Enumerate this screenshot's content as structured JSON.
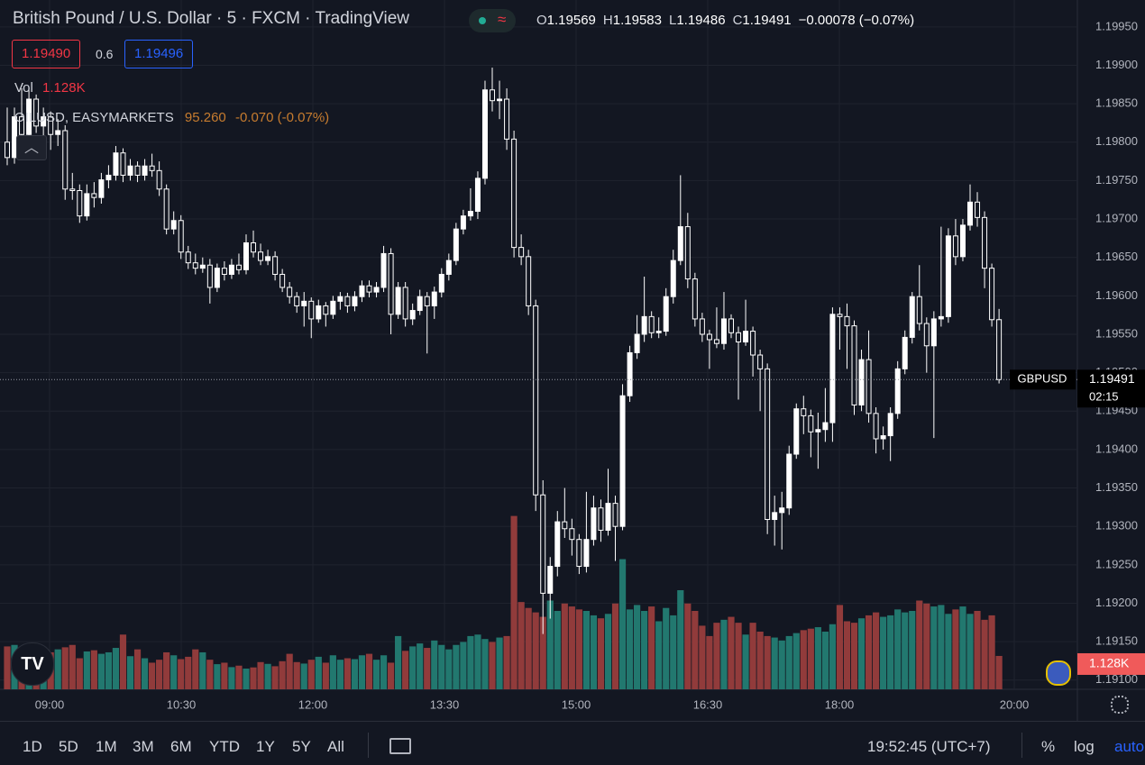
{
  "header": {
    "symbol": "British Pound / U.S. Dollar",
    "interval": "5",
    "exchange": "FXCM",
    "source": "TradingView",
    "ohlc_letters": [
      "O",
      "H",
      "L",
      "C"
    ],
    "change": "−0.00078 (−0.07%)",
    "bid": "1.19490",
    "spread": "0.6",
    "ask": "1.19496",
    "vol_label": "Vol",
    "indicator": "OILUSD, EASYMARKETS",
    "indicator_value": "95.260",
    "indicator_change": "-0.070 (-0.07%)"
  },
  "chart_data": {
    "type": "candlestick",
    "grid": true,
    "candle_color": "#ffffff",
    "up_color": "#22786f",
    "down_color": "#913b3b",
    "symbol_label": "GBPUSD",
    "countdown": "02:15",
    "volume_value_label": "1.128K",
    "ylim": [
      1.19088,
      1.19985
    ],
    "yticks": [
      {
        "value": 1.1995,
        "label": "1.19950"
      },
      {
        "value": 1.199,
        "label": "1.19900"
      },
      {
        "value": 1.1985,
        "label": "1.19850"
      },
      {
        "value": 1.198,
        "label": "1.19800"
      },
      {
        "value": 1.1975,
        "label": "1.19750"
      },
      {
        "value": 1.197,
        "label": "1.19700"
      },
      {
        "value": 1.1965,
        "label": "1.19650"
      },
      {
        "value": 1.196,
        "label": "1.19600"
      },
      {
        "value": 1.1955,
        "label": "1.19550"
      },
      {
        "value": 1.195,
        "label": "1.19500"
      },
      {
        "value": 1.1945,
        "label": "1.19450"
      },
      {
        "value": 1.194,
        "label": "1.19400"
      },
      {
        "value": 1.1935,
        "label": "1.19350"
      },
      {
        "value": 1.193,
        "label": "1.19300"
      },
      {
        "value": 1.1925,
        "label": "1.19250"
      },
      {
        "value": 1.192,
        "label": "1.19200"
      },
      {
        "value": 1.1915,
        "label": "1.19150"
      },
      {
        "value": 1.191,
        "label": "1.19100"
      }
    ],
    "y2lim": [
      0,
      23300
    ],
    "time_labels": [
      "09:00",
      "10:30",
      "12:00",
      "13:30",
      "15:00",
      "16:30",
      "18:00",
      "20:00"
    ],
    "candles": [
      [
        1.198,
        1.19845,
        1.1977,
        1.1978
      ],
      [
        1.1978,
        1.19845,
        1.19772,
        1.19833
      ],
      [
        1.19833,
        1.1987,
        1.198,
        1.1981
      ],
      [
        1.1981,
        1.19868,
        1.19802,
        1.19856
      ],
      [
        1.19856,
        1.19862,
        1.19812,
        1.19821
      ],
      [
        1.19821,
        1.19845,
        1.198,
        1.19833
      ],
      [
        1.19833,
        1.1984,
        1.1979,
        1.1981
      ],
      [
        1.1981,
        1.1983,
        1.19795,
        1.19815
      ],
      [
        1.19815,
        1.19822,
        1.19725,
        1.19739
      ],
      [
        1.19739,
        1.1976,
        1.19725,
        1.19737
      ],
      [
        1.19737,
        1.19745,
        1.19695,
        1.19704
      ],
      [
        1.19704,
        1.19745,
        1.19698,
        1.19733
      ],
      [
        1.19733,
        1.19748,
        1.19715,
        1.19728
      ],
      [
        1.19728,
        1.1976,
        1.1972,
        1.19751
      ],
      [
        1.19751,
        1.1977,
        1.1974,
        1.19757
      ],
      [
        1.19757,
        1.19795,
        1.1975,
        1.19786
      ],
      [
        1.19786,
        1.19792,
        1.19748,
        1.19757
      ],
      [
        1.19757,
        1.19778,
        1.1975,
        1.19769
      ],
      [
        1.19769,
        1.19775,
        1.19748,
        1.19757
      ],
      [
        1.19757,
        1.19778,
        1.1975,
        1.19769
      ],
      [
        1.19769,
        1.19785,
        1.19755,
        1.19763
      ],
      [
        1.19763,
        1.19775,
        1.1973,
        1.19739
      ],
      [
        1.19739,
        1.19745,
        1.1968,
        1.19687
      ],
      [
        1.19687,
        1.1971,
        1.1968,
        1.19698
      ],
      [
        1.19698,
        1.19705,
        1.19648,
        1.19657
      ],
      [
        1.19657,
        1.19665,
        1.19635,
        1.19643
      ],
      [
        1.19643,
        1.19655,
        1.19628,
        1.19636
      ],
      [
        1.19636,
        1.1965,
        1.1963,
        1.1964
      ],
      [
        1.1964,
        1.19648,
        1.1959,
        1.19611
      ],
      [
        1.19611,
        1.19642,
        1.19605,
        1.19636
      ],
      [
        1.19636,
        1.19645,
        1.1962,
        1.19628
      ],
      [
        1.19628,
        1.19648,
        1.19622,
        1.1964
      ],
      [
        1.1964,
        1.19655,
        1.19628,
        1.19634
      ],
      [
        1.19634,
        1.1968,
        1.19628,
        1.19669
      ],
      [
        1.19669,
        1.19685,
        1.1965,
        1.19657
      ],
      [
        1.19657,
        1.19668,
        1.1964,
        1.19646
      ],
      [
        1.19646,
        1.1966,
        1.1964,
        1.19651
      ],
      [
        1.19651,
        1.19658,
        1.1962,
        1.19628
      ],
      [
        1.19628,
        1.19635,
        1.19605,
        1.19611
      ],
      [
        1.19611,
        1.19618,
        1.1959,
        1.19599
      ],
      [
        1.19599,
        1.19605,
        1.19578,
        1.19587
      ],
      [
        1.19587,
        1.19605,
        1.1956,
        1.19593
      ],
      [
        1.19593,
        1.19598,
        1.19545,
        1.1957
      ],
      [
        1.1957,
        1.19595,
        1.19565,
        1.19587
      ],
      [
        1.19587,
        1.19592,
        1.1956,
        1.19576
      ],
      [
        1.19576,
        1.196,
        1.1957,
        1.19593
      ],
      [
        1.19593,
        1.19605,
        1.19582,
        1.19599
      ],
      [
        1.19599,
        1.19604,
        1.19578,
        1.19587
      ],
      [
        1.19587,
        1.19606,
        1.1958,
        1.19599
      ],
      [
        1.19599,
        1.1962,
        1.19592,
        1.19613
      ],
      [
        1.19613,
        1.1962,
        1.19598,
        1.19605
      ],
      [
        1.19605,
        1.19618,
        1.19598,
        1.19611
      ],
      [
        1.19611,
        1.19665,
        1.19605,
        1.19655
      ],
      [
        1.19655,
        1.19662,
        1.1955,
        1.19576
      ],
      [
        1.19576,
        1.19618,
        1.1957,
        1.19611
      ],
      [
        1.19611,
        1.19618,
        1.1956,
        1.1957
      ],
      [
        1.1957,
        1.1959,
        1.19562,
        1.19581
      ],
      [
        1.19581,
        1.19608,
        1.19575,
        1.19599
      ],
      [
        1.19599,
        1.19605,
        1.19525,
        1.19587
      ],
      [
        1.19587,
        1.19612,
        1.1957,
        1.19605
      ],
      [
        1.19605,
        1.19636,
        1.19598,
        1.19628
      ],
      [
        1.19628,
        1.19655,
        1.1962,
        1.19646
      ],
      [
        1.19646,
        1.19695,
        1.1964,
        1.19687
      ],
      [
        1.19687,
        1.19712,
        1.1968,
        1.19704
      ],
      [
        1.19704,
        1.1974,
        1.19698,
        1.1971
      ],
      [
        1.1971,
        1.19762,
        1.197,
        1.19753
      ],
      [
        1.19753,
        1.1988,
        1.19745,
        1.19868
      ],
      [
        1.19868,
        1.19897,
        1.1984,
        1.19854
      ],
      [
        1.19854,
        1.1988,
        1.1983,
        1.19856
      ],
      [
        1.19856,
        1.1987,
        1.1979,
        1.19804
      ],
      [
        1.19804,
        1.19815,
        1.1965,
        1.19663
      ],
      [
        1.19663,
        1.1968,
        1.1964,
        1.19651
      ],
      [
        1.19651,
        1.1966,
        1.19575,
        1.19587
      ],
      [
        1.19587,
        1.19595,
        1.1932,
        1.19341
      ],
      [
        1.19341,
        1.1936,
        1.1916,
        1.19213
      ],
      [
        1.19213,
        1.1926,
        1.1918,
        1.19248
      ],
      [
        1.19248,
        1.1932,
        1.19235,
        1.19306
      ],
      [
        1.19306,
        1.1935,
        1.19285,
        1.19297
      ],
      [
        1.19297,
        1.1931,
        1.19262,
        1.19283
      ],
      [
        1.19283,
        1.1929,
        1.19238,
        1.19248
      ],
      [
        1.19248,
        1.19345,
        1.1924,
        1.19283
      ],
      [
        1.19283,
        1.1934,
        1.19275,
        1.19324
      ],
      [
        1.19324,
        1.19335,
        1.1928,
        1.19295
      ],
      [
        1.19295,
        1.19375,
        1.19288,
        1.1933
      ],
      [
        1.1933,
        1.1934,
        1.19255,
        1.193
      ],
      [
        1.193,
        1.19485,
        1.19295,
        1.1947
      ],
      [
        1.1947,
        1.19535,
        1.19462,
        1.19526
      ],
      [
        1.19526,
        1.19575,
        1.19518,
        1.1955
      ],
      [
        1.1955,
        1.19625,
        1.1954,
        1.19573
      ],
      [
        1.19573,
        1.1958,
        1.19545,
        1.19552
      ],
      [
        1.19552,
        1.19572,
        1.19545,
        1.19554
      ],
      [
        1.19554,
        1.1961,
        1.19548,
        1.19599
      ],
      [
        1.19599,
        1.1966,
        1.1959,
        1.19646
      ],
      [
        1.19646,
        1.19757,
        1.1964,
        1.1969
      ],
      [
        1.1969,
        1.19708,
        1.1961,
        1.19622
      ],
      [
        1.19622,
        1.1963,
        1.1956,
        1.1957
      ],
      [
        1.1957,
        1.19578,
        1.1954,
        1.1955
      ],
      [
        1.1955,
        1.19556,
        1.19505,
        1.19543
      ],
      [
        1.19543,
        1.19585,
        1.19532,
        1.19538
      ],
      [
        1.19538,
        1.19605,
        1.1953,
        1.1957
      ],
      [
        1.1957,
        1.19576,
        1.19545,
        1.19552
      ],
      [
        1.19552,
        1.1956,
        1.19465,
        1.1954
      ],
      [
        1.1954,
        1.19595,
        1.19535,
        1.19554
      ],
      [
        1.19554,
        1.1956,
        1.19495,
        1.19523
      ],
      [
        1.19523,
        1.1953,
        1.1945,
        1.19505
      ],
      [
        1.19505,
        1.19512,
        1.1929,
        1.19309
      ],
      [
        1.19309,
        1.1934,
        1.19275,
        1.19318
      ],
      [
        1.19318,
        1.19345,
        1.1927,
        1.19324
      ],
      [
        1.19324,
        1.19405,
        1.19315,
        1.19394
      ],
      [
        1.19394,
        1.1946,
        1.19388,
        1.19453
      ],
      [
        1.19453,
        1.1947,
        1.1942,
        1.19444
      ],
      [
        1.19444,
        1.19452,
        1.1939,
        1.19423
      ],
      [
        1.19423,
        1.19448,
        1.19375,
        1.19426
      ],
      [
        1.19426,
        1.1948,
        1.1941,
        1.19435
      ],
      [
        1.19435,
        1.19585,
        1.1941,
        1.19576
      ],
      [
        1.19576,
        1.19585,
        1.1953,
        1.19573
      ],
      [
        1.19573,
        1.1959,
        1.19505,
        1.19561
      ],
      [
        1.19561,
        1.19568,
        1.19445,
        1.19458
      ],
      [
        1.19458,
        1.1953,
        1.1945,
        1.19517
      ],
      [
        1.19517,
        1.19555,
        1.19435,
        1.19447
      ],
      [
        1.19447,
        1.19455,
        1.19395,
        1.19414
      ],
      [
        1.19414,
        1.1943,
        1.194,
        1.19418
      ],
      [
        1.19418,
        1.19455,
        1.19385,
        1.19447
      ],
      [
        1.19447,
        1.19515,
        1.1944,
        1.19505
      ],
      [
        1.19505,
        1.19555,
        1.19498,
        1.19546
      ],
      [
        1.19546,
        1.19605,
        1.19538,
        1.19599
      ],
      [
        1.19599,
        1.1964,
        1.19555,
        1.19564
      ],
      [
        1.19564,
        1.19572,
        1.195,
        1.19535
      ],
      [
        1.19535,
        1.1958,
        1.19415,
        1.1957
      ],
      [
        1.1957,
        1.1969,
        1.1956,
        1.19573
      ],
      [
        1.19573,
        1.19688,
        1.19565,
        1.19678
      ],
      [
        1.19678,
        1.197,
        1.1964,
        1.19651
      ],
      [
        1.19651,
        1.197,
        1.19645,
        1.19692
      ],
      [
        1.19692,
        1.19745,
        1.19685,
        1.19722
      ],
      [
        1.19722,
        1.19735,
        1.1969,
        1.19702
      ],
      [
        1.19702,
        1.1971,
        1.1961,
        1.19636
      ],
      [
        1.19636,
        1.19642,
        1.1956,
        1.19569
      ],
      [
        1.19569,
        1.19583,
        1.19486,
        1.19491
      ]
    ],
    "volumes": [
      1450,
      1500,
      1380,
      1300,
      1150,
      1100,
      1250,
      1350,
      1420,
      1500,
      1050,
      1280,
      1320,
      1200,
      1250,
      1400,
      1850,
      1120,
      1350,
      1050,
      900,
      1000,
      1250,
      1150,
      1020,
      1100,
      1350,
      1250,
      1000,
      850,
      900,
      750,
      800,
      700,
      740,
      920,
      860,
      780,
      950,
      1200,
      920,
      870,
      1000,
      1100,
      900,
      1150,
      1000,
      1050,
      1020,
      1150,
      1200,
      1000,
      1150,
      900,
      1800,
      1300,
      1450,
      1550,
      1400,
      1650,
      1500,
      1350,
      1500,
      1600,
      1800,
      1850,
      1700,
      1600,
      1750,
      1800,
      5860,
      2950,
      2750,
      2600,
      2450,
      3000,
      2650,
      2900,
      2800,
      2700,
      2650,
      2500,
      2400,
      2550,
      2900,
      4400,
      2700,
      2850,
      2650,
      2800,
      2300,
      2750,
      2500,
      3350,
      2900,
      2650,
      2150,
      1800,
      2250,
      2350,
      2450,
      2250,
      1850,
      2250,
      1950,
      1800,
      1750,
      1650,
      1800,
      1900,
      2000,
      2050,
      2100,
      1950,
      2200,
      2850,
      2300,
      2250,
      2400,
      2500,
      2600,
      2450,
      2500,
      2700,
      2600,
      2650,
      3000,
      2900,
      2800,
      2850,
      2550,
      2700,
      2800,
      2550,
      2650,
      2350,
      2500,
      1128
    ]
  },
  "toolbar": {
    "ranges": [
      "1D",
      "5D",
      "1M",
      "3M",
      "6M",
      "YTD",
      "1Y",
      "5Y",
      "All"
    ],
    "clock": "19:52:45 (UTC+7)",
    "options": [
      "%",
      "log",
      "auto"
    ]
  }
}
